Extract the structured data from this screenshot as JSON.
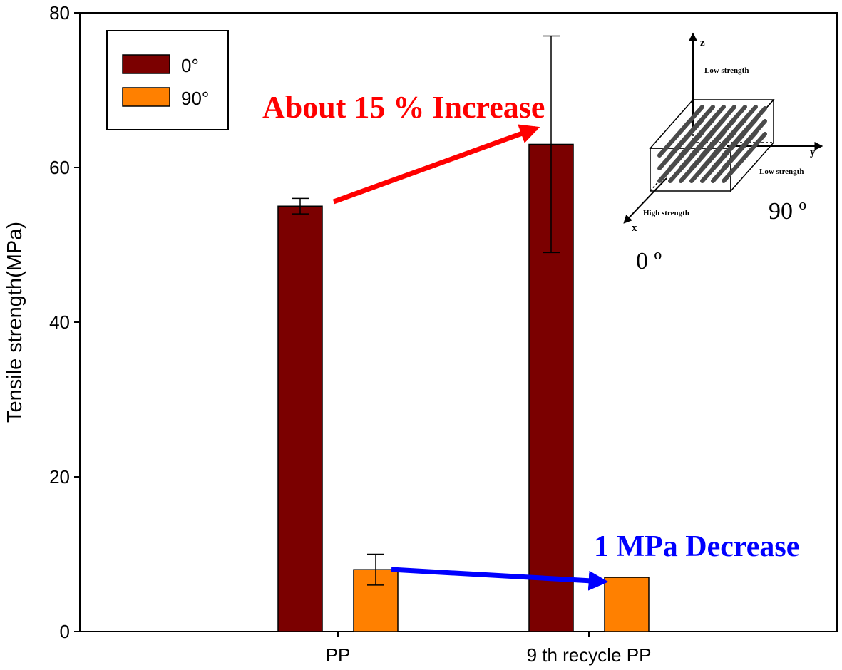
{
  "chart_data": {
    "type": "bar",
    "title": "",
    "xlabel": "",
    "ylabel": "Tensile strength(MPa)",
    "ylim": [
      0,
      80
    ],
    "yticks": [
      0,
      20,
      40,
      60,
      80
    ],
    "categories": [
      "PP",
      "9 th recycle PP"
    ],
    "series": [
      {
        "name": "0°",
        "color": "#7b0000",
        "values": [
          55,
          63
        ],
        "errors": [
          1,
          14
        ]
      },
      {
        "name": "90°",
        "color": "#ff8000",
        "values": [
          8,
          7
        ],
        "errors": [
          2,
          0
        ]
      }
    ],
    "legend": {
      "position": "top-left",
      "labels": [
        "0°",
        "90°"
      ]
    },
    "annotations": {
      "increase": "About 15 % Increase",
      "decrease": "1 MPa Decrease",
      "increase_color": "#ff0000",
      "decrease_color": "#0000ff"
    },
    "inset": {
      "axis_z": "z",
      "axis_y": "y",
      "axis_x": "x",
      "top_label": "Low strength",
      "side_label": "Low strength",
      "front_label": "High strength",
      "deg_90": "90 º",
      "deg_0": "0 º"
    }
  }
}
